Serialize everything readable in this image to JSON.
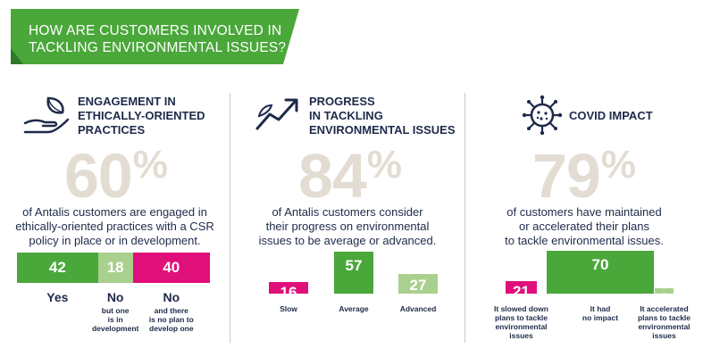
{
  "banner": {
    "line1": "HOW ARE CUSTOMERS INVOLVED IN",
    "line2": "TACKLING ENVIRONMENTAL ISSUES?"
  },
  "colors": {
    "green": "#4aa73a",
    "light_green": "#a9d08e",
    "pink": "#e0107a",
    "navy": "#1e2a4a",
    "beige": "#e3dcd2"
  },
  "icons": [
    "leaf-hand-icon",
    "trend-arrow-icon",
    "virus-icon"
  ],
  "columns": [
    {
      "title": [
        "ENGAGEMENT IN",
        "ETHICALLY-ORIENTED",
        "PRACTICES"
      ],
      "big_value": "60",
      "big_unit": "%",
      "desc": [
        "of Antalis customers are engaged in",
        "ethically-oriented practices with a CSR",
        "policy in place or in development."
      ]
    },
    {
      "title": [
        "PROGRESS",
        "IN TACKLING",
        "ENVIRONMENTAL ISSUES"
      ],
      "big_value": "84",
      "big_unit": "%",
      "desc": [
        "of Antalis customers consider",
        "their progress on environmental",
        "issues to be average or advanced."
      ]
    },
    {
      "title": [
        "COVID IMPACT"
      ],
      "big_value": "79",
      "big_unit": "%",
      "desc": [
        "of customers have maintained",
        "or accelerated their plans",
        "to tackle environmental issues."
      ]
    }
  ],
  "chart_data": [
    {
      "type": "bar",
      "layout": "stacked-horizontal",
      "categories": [
        "Yes",
        "No",
        "No"
      ],
      "subtitles": [
        [],
        [
          "but one",
          "is in",
          "development"
        ],
        [
          "and there",
          "is no plan to",
          "develop one"
        ]
      ],
      "values": [
        42,
        18,
        40
      ],
      "colors": [
        "#4aa73a",
        "#a9d08e",
        "#e0107a"
      ]
    },
    {
      "type": "bar",
      "categories": [
        "Slow",
        "Average",
        "Advanced"
      ],
      "values": [
        16,
        57,
        27
      ],
      "colors": [
        "#e0107a",
        "#4aa73a",
        "#a9d08e"
      ]
    },
    {
      "type": "bar",
      "categories": [
        [
          "It slowed down",
          "plans to tackle",
          "environmental",
          "issues"
        ],
        [
          "It had",
          "no impact"
        ],
        [
          "It accelerated",
          "plans to tackle",
          "environmental",
          "issues"
        ]
      ],
      "values": [
        21,
        70,
        9
      ],
      "colors": [
        "#e0107a",
        "#4aa73a",
        "#a9d08e"
      ]
    }
  ]
}
